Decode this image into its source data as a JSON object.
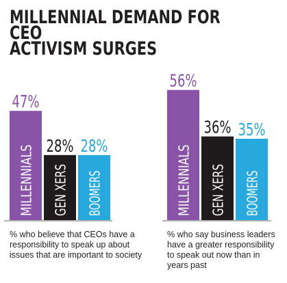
{
  "title": [
    "MILLENNIAL DEMAND FOR CEO",
    "ACTIVISM SURGES"
  ],
  "colors": {
    "MILLENNIALS": "#8954a7",
    "GEN XERS": "#1f1b1c",
    "BOOMERS": "#27a9de",
    "axis": "#9c9a9a"
  },
  "chart_data": [
    {
      "type": "bar",
      "categories": [
        "MILLENNIALS",
        "GEN XERS",
        "BOOMERS"
      ],
      "values": [
        47,
        28,
        28
      ],
      "value_labels": [
        "47%",
        "28%",
        "28%"
      ],
      "caption": "% who believe that CEOs have a responsibility to speak up about issues that are important to society"
    },
    {
      "type": "bar",
      "categories": [
        "MILLENNIALS",
        "GEN XERS",
        "BOOMERS"
      ],
      "values": [
        56,
        36,
        35
      ],
      "value_labels": [
        "56%",
        "36%",
        "35%"
      ],
      "caption": "% who say business leaders have a greater responsibility to speak out now than in years past"
    }
  ]
}
